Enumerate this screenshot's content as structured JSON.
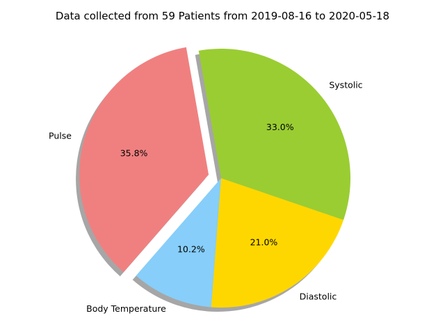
{
  "chart_data": {
    "type": "pie",
    "title": "Data collected from 59 Patients from 2019-08-16 to 2020-05-18",
    "start_angle_deg": 100,
    "direction": "counterclockwise",
    "shadow": true,
    "slices": [
      {
        "label": "Pulse",
        "value": 35.8,
        "pct_label": "35.8%",
        "color": "#f08080",
        "explode": 0.1
      },
      {
        "label": "Body Temperature",
        "value": 10.2,
        "pct_label": "10.2%",
        "color": "#87cefa",
        "explode": 0
      },
      {
        "label": "Diastolic",
        "value": 21.0,
        "pct_label": "21.0%",
        "color": "#ffd700",
        "explode": 0
      },
      {
        "label": "Systolic",
        "value": 33.0,
        "pct_label": "33.0%",
        "color": "#9acd32",
        "explode": 0
      }
    ]
  }
}
